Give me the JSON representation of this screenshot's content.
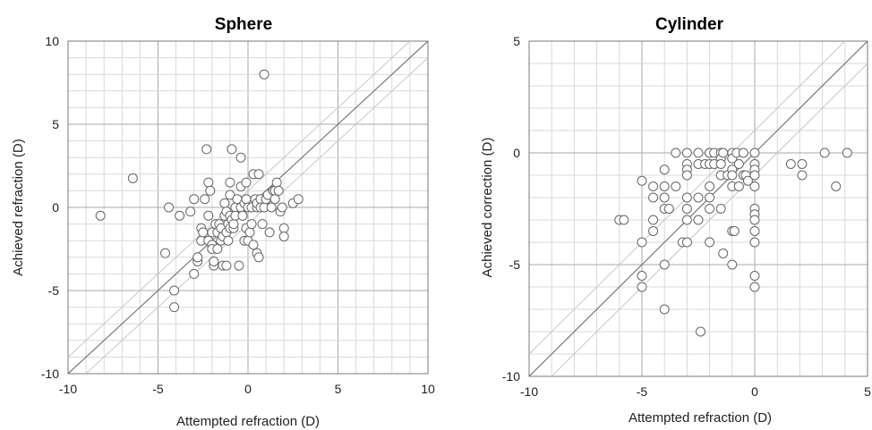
{
  "chart_data": [
    {
      "type": "scatter",
      "title": "Sphere",
      "xlabel": "Attempted refraction (D)",
      "ylabel": "Achieved refraction (D)",
      "xlim": [
        -10,
        10
      ],
      "ylim": [
        -10,
        10
      ],
      "xticks": [
        "-10",
        "-5",
        "0",
        "5",
        "10"
      ],
      "yticks": [
        "-10",
        "-5",
        "0",
        "5",
        "10"
      ],
      "grid": true,
      "minor_grid_step": 1,
      "reference_lines": [
        {
          "kind": "identity",
          "offset": 0
        },
        {
          "kind": "tolerance",
          "offset": 1
        },
        {
          "kind": "tolerance",
          "offset": -1
        }
      ],
      "points": [
        [
          -8.2,
          -0.5
        ],
        [
          -6.4,
          1.75
        ],
        [
          -4.6,
          -2.75
        ],
        [
          -4.4,
          0.0
        ],
        [
          -4.1,
          -5.0
        ],
        [
          -4.1,
          -6.0
        ],
        [
          -3.8,
          -0.5
        ],
        [
          -3.2,
          -0.25
        ],
        [
          -3.0,
          0.5
        ],
        [
          -3.0,
          -4.0
        ],
        [
          -2.8,
          -3.25
        ],
        [
          -2.8,
          -3.0
        ],
        [
          -2.6,
          -2.0
        ],
        [
          -2.6,
          -1.25
        ],
        [
          -2.5,
          -1.5
        ],
        [
          -2.4,
          0.5
        ],
        [
          -2.3,
          3.5
        ],
        [
          -2.2,
          1.5
        ],
        [
          -2.2,
          -2.0
        ],
        [
          -2.2,
          -0.5
        ],
        [
          -2.1,
          1.0
        ],
        [
          -2.0,
          -1.5
        ],
        [
          -2.0,
          -2.25
        ],
        [
          -2.0,
          -2.5
        ],
        [
          -1.9,
          -3.5
        ],
        [
          -1.9,
          -3.25
        ],
        [
          -1.8,
          -1.0
        ],
        [
          -1.7,
          -1.5
        ],
        [
          -1.7,
          -2.5
        ],
        [
          -1.6,
          -1.0
        ],
        [
          -1.5,
          -1.25
        ],
        [
          -1.5,
          -2.0
        ],
        [
          -1.4,
          -3.5
        ],
        [
          -1.4,
          -1.75
        ],
        [
          -1.3,
          0.25
        ],
        [
          -1.3,
          -0.5
        ],
        [
          -1.2,
          -0.25
        ],
        [
          -1.2,
          -1.5
        ],
        [
          -1.2,
          -3.5
        ],
        [
          -1.1,
          -2.0
        ],
        [
          -1.1,
          -1.0
        ],
        [
          -1.0,
          1.5
        ],
        [
          -1.0,
          0.75
        ],
        [
          -1.0,
          -0.5
        ],
        [
          -1.0,
          -1.25
        ],
        [
          -0.9,
          3.5
        ],
        [
          -0.9,
          -0.75
        ],
        [
          -0.8,
          -1.25
        ],
        [
          -0.8,
          -1.0
        ],
        [
          -0.7,
          0.0
        ],
        [
          -0.7,
          -0.5
        ],
        [
          -0.6,
          0.5
        ],
        [
          -0.5,
          -3.5
        ],
        [
          -0.4,
          3.0
        ],
        [
          -0.4,
          1.25
        ],
        [
          -0.4,
          0.0
        ],
        [
          -0.3,
          -0.5
        ],
        [
          -0.2,
          0.25
        ],
        [
          -0.2,
          -2.0
        ],
        [
          -0.1,
          1.5
        ],
        [
          -0.1,
          0.5
        ],
        [
          -0.1,
          -1.25
        ],
        [
          0.0,
          -2.0
        ],
        [
          0.0,
          0.0
        ],
        [
          0.1,
          -1.5
        ],
        [
          0.2,
          -1.0
        ],
        [
          0.2,
          0.0
        ],
        [
          0.3,
          -2.25
        ],
        [
          0.3,
          2.0
        ],
        [
          0.4,
          0.5
        ],
        [
          0.5,
          -2.75
        ],
        [
          0.5,
          0.0
        ],
        [
          0.5,
          0.25
        ],
        [
          0.6,
          2.0
        ],
        [
          0.6,
          -3.0
        ],
        [
          0.7,
          0.5
        ],
        [
          0.7,
          0.0
        ],
        [
          0.8,
          -1.0
        ],
        [
          0.9,
          0.0
        ],
        [
          0.9,
          8.0
        ],
        [
          1.0,
          0.5
        ],
        [
          1.1,
          0.75
        ],
        [
          1.2,
          -1.5
        ],
        [
          1.3,
          0.0
        ],
        [
          1.4,
          1.0
        ],
        [
          1.5,
          1.0
        ],
        [
          1.5,
          0.5
        ],
        [
          1.6,
          1.5
        ],
        [
          1.7,
          1.0
        ],
        [
          1.8,
          -0.25
        ],
        [
          1.9,
          0.0
        ],
        [
          2.0,
          -1.25
        ],
        [
          2.0,
          -1.75
        ],
        [
          2.5,
          0.25
        ],
        [
          2.8,
          0.5
        ]
      ]
    },
    {
      "type": "scatter",
      "title": "Cylinder",
      "xlabel": "Attempted refraction (D)",
      "ylabel": "Achieved correction (D)",
      "xlim": [
        -10,
        5
      ],
      "ylim": [
        -10,
        5
      ],
      "xticks": [
        "-10",
        "-5",
        "0",
        "5"
      ],
      "yticks": [
        "-10",
        "-5",
        "0",
        "5"
      ],
      "grid": true,
      "minor_grid_step": 1,
      "reference_lines": [
        {
          "kind": "identity",
          "offset": 0
        },
        {
          "kind": "tolerance",
          "offset": 1
        },
        {
          "kind": "tolerance",
          "offset": -1
        }
      ],
      "points": [
        [
          -6.0,
          -3.0
        ],
        [
          -5.8,
          -3.0
        ],
        [
          -5.0,
          -1.25
        ],
        [
          -5.0,
          -4.0
        ],
        [
          -5.0,
          -5.5
        ],
        [
          -5.0,
          -6.0
        ],
        [
          -4.5,
          -1.5
        ],
        [
          -4.5,
          -2.0
        ],
        [
          -4.5,
          -3.0
        ],
        [
          -4.5,
          -3.5
        ],
        [
          -4.0,
          -0.75
        ],
        [
          -4.0,
          -1.5
        ],
        [
          -4.0,
          -2.0
        ],
        [
          -4.0,
          -2.5
        ],
        [
          -4.0,
          -5.0
        ],
        [
          -4.0,
          -7.0
        ],
        [
          -3.8,
          -2.5
        ],
        [
          -3.5,
          0.0
        ],
        [
          -3.5,
          -1.5
        ],
        [
          -3.2,
          -4.0
        ],
        [
          -3.0,
          0.0
        ],
        [
          -3.0,
          -0.5
        ],
        [
          -3.0,
          -0.75
        ],
        [
          -3.0,
          -1.0
        ],
        [
          -3.0,
          -2.0
        ],
        [
          -3.0,
          -2.5
        ],
        [
          -3.0,
          -3.0
        ],
        [
          -3.0,
          -4.0
        ],
        [
          -2.5,
          0.0
        ],
        [
          -2.5,
          -0.5
        ],
        [
          -2.5,
          -2.0
        ],
        [
          -2.5,
          -3.0
        ],
        [
          -2.4,
          -8.0
        ],
        [
          -2.2,
          -0.5
        ],
        [
          -2.0,
          0.0
        ],
        [
          -2.0,
          0.0
        ],
        [
          -2.0,
          -0.5
        ],
        [
          -2.0,
          -1.5
        ],
        [
          -2.0,
          -2.0
        ],
        [
          -2.0,
          -2.5
        ],
        [
          -2.0,
          -4.0
        ],
        [
          -1.8,
          0.0
        ],
        [
          -1.8,
          -0.5
        ],
        [
          -1.5,
          0.0
        ],
        [
          -1.5,
          -0.25
        ],
        [
          -1.5,
          -0.5
        ],
        [
          -1.5,
          -1.0
        ],
        [
          -1.5,
          -2.5
        ],
        [
          -1.4,
          0.0
        ],
        [
          -1.4,
          -4.5
        ],
        [
          -1.2,
          -1.0
        ],
        [
          -1.0,
          0.0
        ],
        [
          -1.0,
          -0.25
        ],
        [
          -1.0,
          -0.75
        ],
        [
          -1.0,
          -1.0
        ],
        [
          -1.0,
          -1.5
        ],
        [
          -1.0,
          -3.5
        ],
        [
          -1.0,
          -5.0
        ],
        [
          -0.9,
          -3.5
        ],
        [
          -0.8,
          0.0
        ],
        [
          -0.7,
          -0.5
        ],
        [
          -0.7,
          -1.5
        ],
        [
          -0.5,
          0.0
        ],
        [
          -0.5,
          -1.0
        ],
        [
          -0.4,
          -1.0
        ],
        [
          -0.3,
          -1.25
        ],
        [
          0.0,
          0.0
        ],
        [
          0.0,
          -0.5
        ],
        [
          0.0,
          -0.75
        ],
        [
          0.0,
          -1.0
        ],
        [
          0.0,
          -1.5
        ],
        [
          0.0,
          -2.5
        ],
        [
          0.0,
          -2.75
        ],
        [
          0.0,
          -3.0
        ],
        [
          0.0,
          -3.5
        ],
        [
          0.0,
          -4.0
        ],
        [
          0.0,
          -5.5
        ],
        [
          0.0,
          -6.0
        ],
        [
          1.6,
          -0.5
        ],
        [
          2.1,
          -0.5
        ],
        [
          2.1,
          -1.0
        ],
        [
          3.1,
          0.0
        ],
        [
          3.6,
          -1.5
        ],
        [
          4.1,
          0.0
        ]
      ]
    }
  ]
}
